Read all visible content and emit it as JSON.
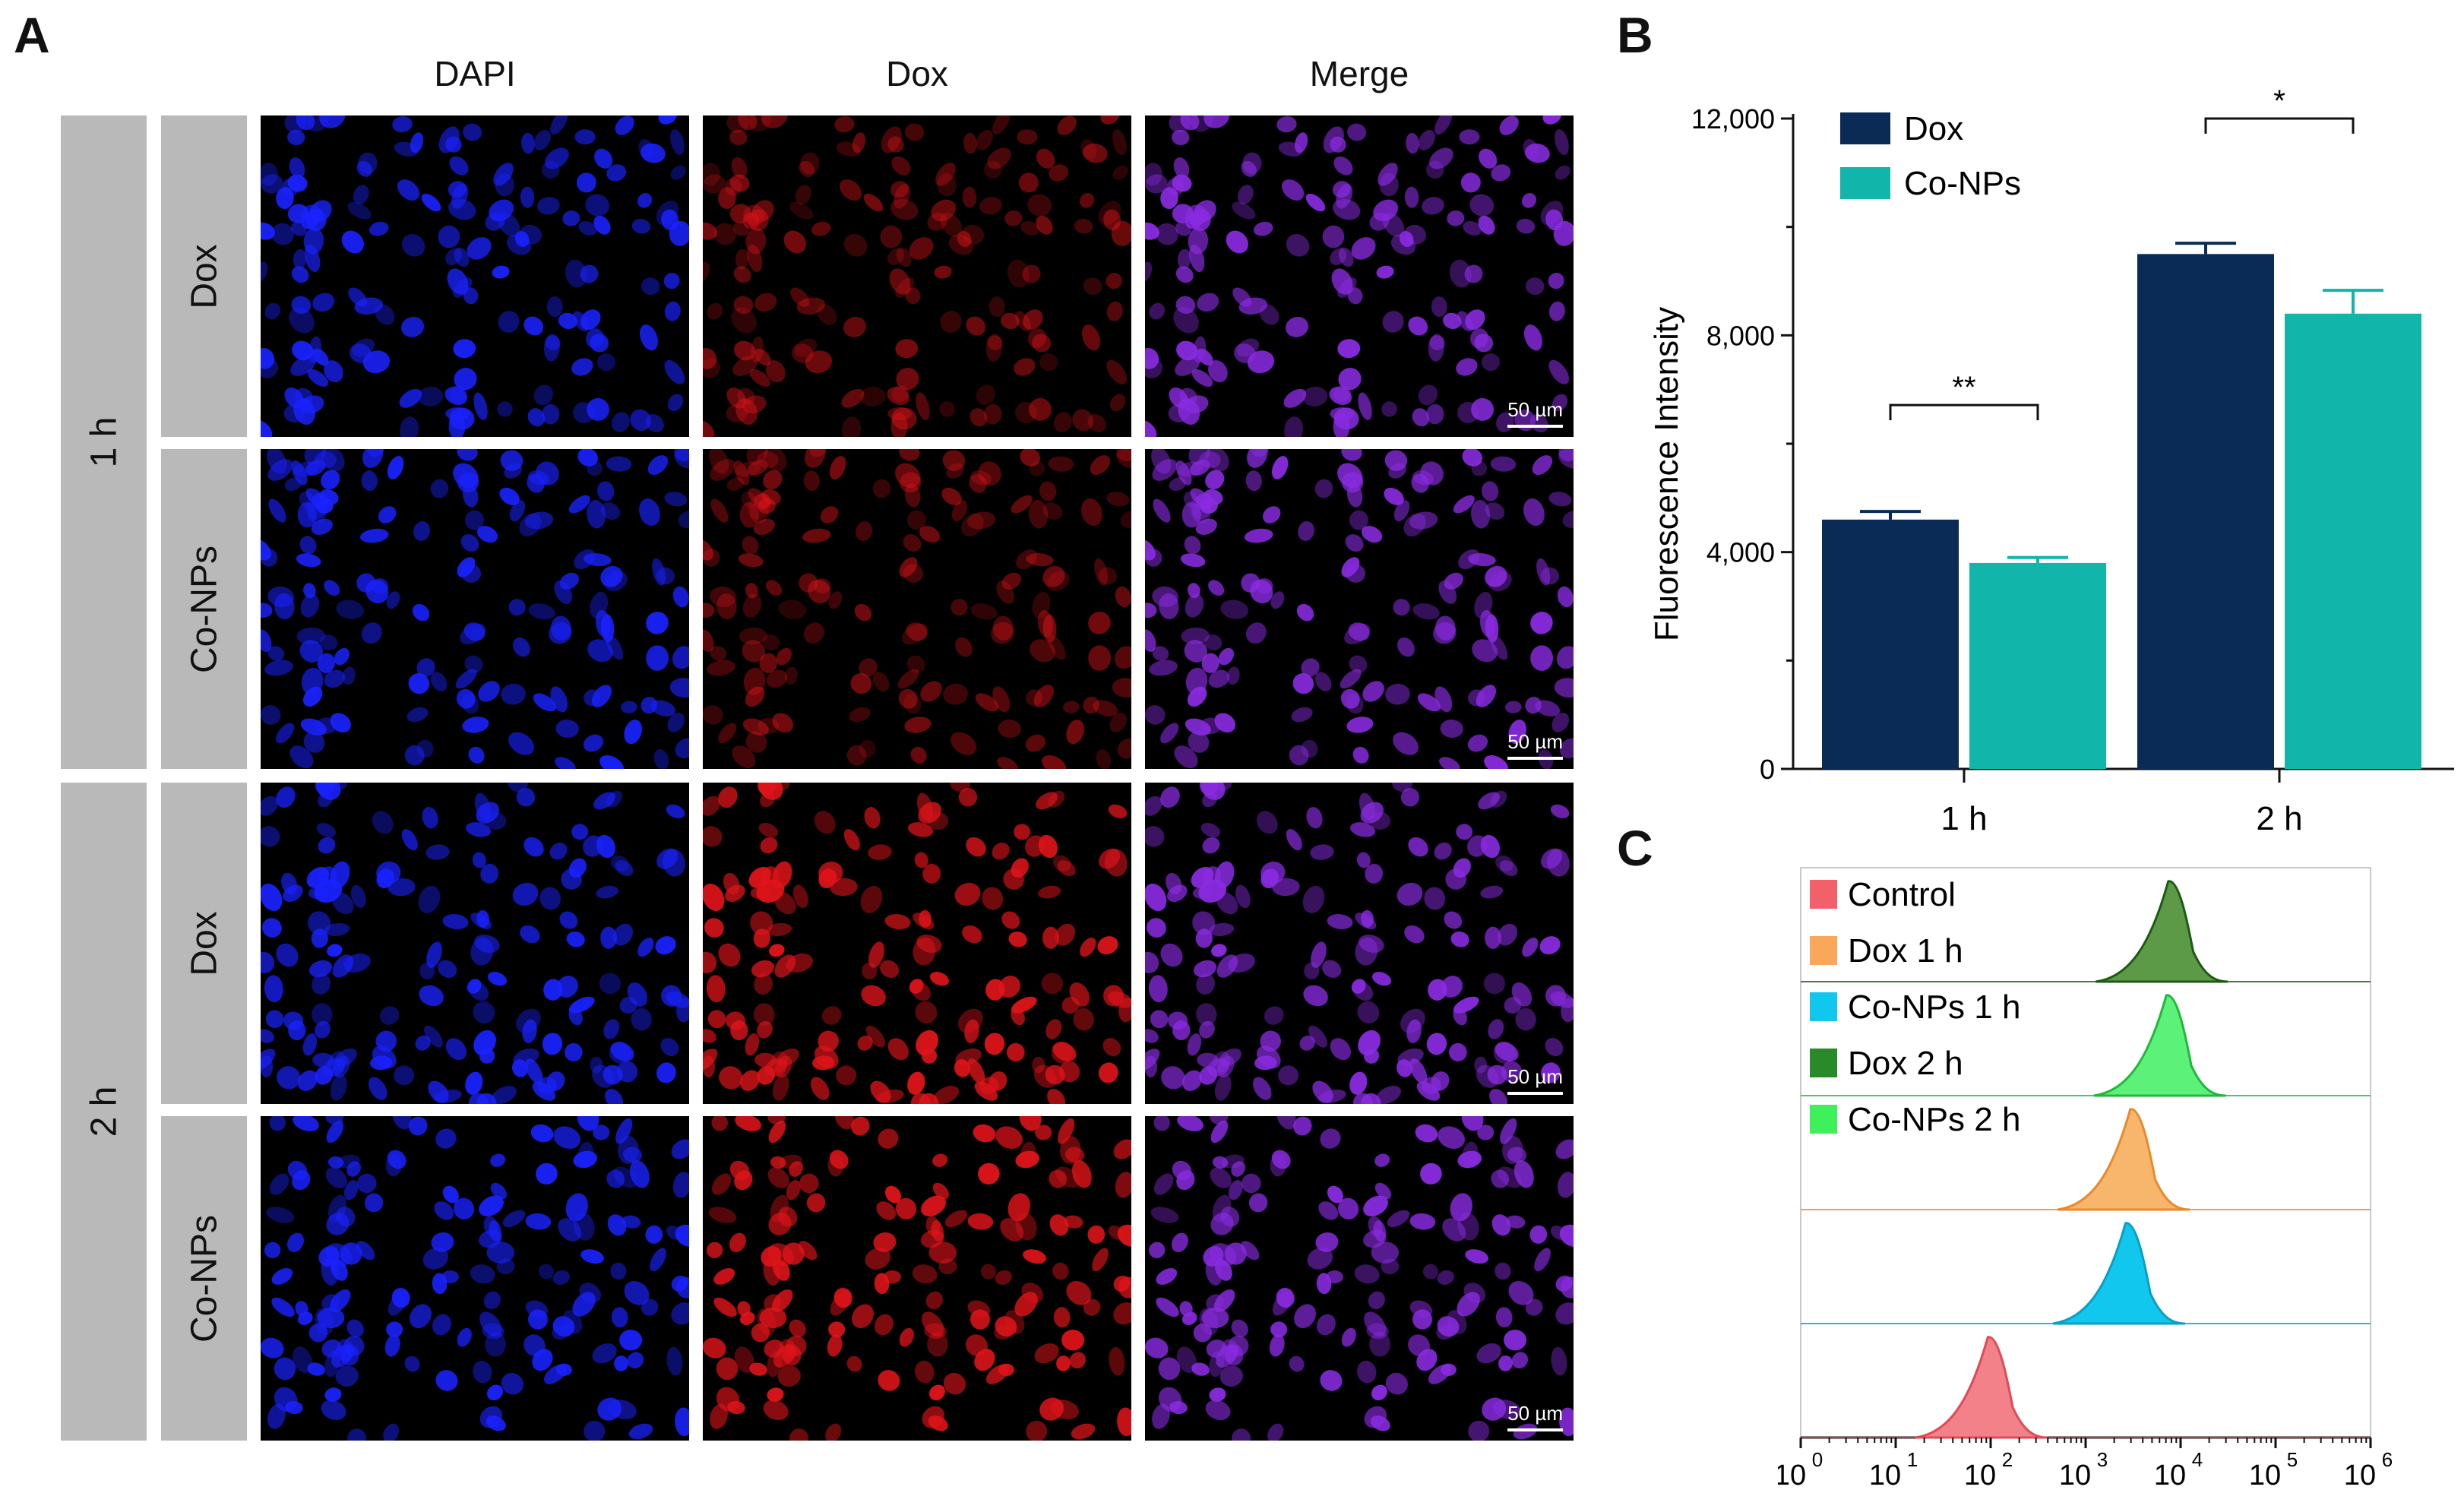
{
  "panels": {
    "a": "A",
    "b": "B",
    "c": "C"
  },
  "panel_a": {
    "columns": [
      "DAPI",
      "Dox",
      "Merge"
    ],
    "time_labels": [
      "1 h",
      "2 h"
    ],
    "row_labels": [
      "Dox",
      "Co-NPs",
      "Dox",
      "Co-NPs"
    ],
    "scale_bar": "50 µm",
    "channel_colors": {
      "DAPI": "#1a22ff",
      "Dox": "#e0141a",
      "Merge": "#8a2be2"
    }
  },
  "chart_data": [
    {
      "type": "bar",
      "panel": "B",
      "categories": [
        "1 h",
        "2 h"
      ],
      "series": [
        {
          "name": "Dox",
          "color": "#0a2b55",
          "values": [
            4600,
            9500
          ],
          "errors": [
            150,
            200
          ]
        },
        {
          "name": "Co-NPs",
          "color": "#12b5a9",
          "values": [
            3800,
            8400
          ],
          "errors": [
            100,
            430
          ]
        }
      ],
      "ylabel": "Fluorescence Intensity",
      "xlabel": "",
      "ylim": [
        0,
        12000
      ],
      "yticks": [
        0,
        4000,
        8000,
        12000
      ],
      "ytick_labels": [
        "0",
        "4,000",
        "8,000",
        "12,000"
      ],
      "significance": [
        {
          "category": "1 h",
          "label": "**"
        },
        {
          "category": "2 h",
          "label": "*"
        }
      ],
      "legend_position": "top-left"
    },
    {
      "type": "histogram",
      "panel": "C",
      "xscale": "log",
      "xlim_exponents": [
        0,
        6
      ],
      "xtick_labels": [
        "10",
        "10",
        "10",
        "10",
        "10",
        "10",
        "10"
      ],
      "xtick_exponents": [
        "0",
        "1",
        "2",
        "3",
        "4",
        "5",
        "6"
      ],
      "legend": [
        {
          "name": "Control",
          "color": "#f2616a"
        },
        {
          "name": "Dox 1 h",
          "color": "#f9a75a"
        },
        {
          "name": "Co-NPs 1 h",
          "color": "#12c7ee"
        },
        {
          "name": "Dox 2 h",
          "color": "#2a8a2a"
        },
        {
          "name": "Co-NPs 2 h",
          "color": "#3ef05a"
        }
      ],
      "tracks": [
        {
          "name": "Dox 2 h",
          "peak_log10": 3.95,
          "color": "#5c9a48",
          "edge": "#1f5a14"
        },
        {
          "name": "Co-NPs 2 h",
          "peak_log10": 3.93,
          "color": "#5cf27a",
          "edge": "#20b83a"
        },
        {
          "name": "Dox 1 h",
          "peak_log10": 3.55,
          "color": "#f8b56c",
          "edge": "#e88a2a"
        },
        {
          "name": "Co-NPs 1 h",
          "peak_log10": 3.5,
          "color": "#12c7ee",
          "edge": "#0a9fc4"
        },
        {
          "name": "Control",
          "peak_log10": 2.05,
          "color": "#f2818a",
          "edge": "#e04a55"
        }
      ]
    }
  ]
}
